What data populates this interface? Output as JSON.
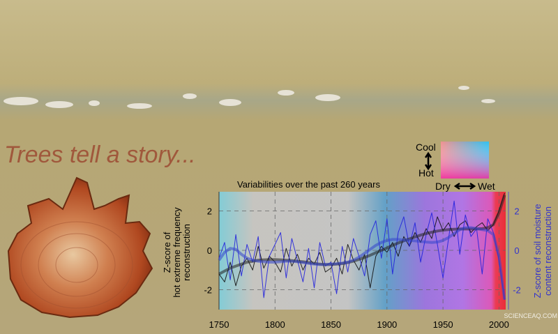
{
  "headline": "Trees tell a story...",
  "watermark": "SCIENCEAQ.COM",
  "legend_box": {
    "cool_label": "Cool",
    "hot_label": "Hot",
    "dry_label": "Dry",
    "wet_label": "Wet"
  },
  "colors": {
    "hot_series": "#111111",
    "moisture_series": "#2222dd",
    "headline": "#a0583c"
  },
  "chart_data": {
    "type": "line",
    "title": "Variabilities over the past 260 years",
    "xlabel": "",
    "ylabel_left": "Z-score of hot extreme frequency reconstruction",
    "ylabel_left_lines": [
      "Z-score of",
      "hot extreme frequency",
      "reconstruction"
    ],
    "ylabel_right_lines": [
      "Z-score of soil moisture",
      "content reconstruction"
    ],
    "xlim": [
      1750,
      2006
    ],
    "ylim": [
      -3,
      3
    ],
    "xticks": [
      1750,
      1800,
      1850,
      1900,
      1950,
      2000
    ],
    "yticks": [
      -2,
      0,
      2
    ],
    "grid": true,
    "x": [
      1750,
      1755,
      1760,
      1765,
      1770,
      1775,
      1780,
      1785,
      1790,
      1795,
      1800,
      1805,
      1810,
      1815,
      1820,
      1825,
      1830,
      1835,
      1840,
      1845,
      1850,
      1855,
      1860,
      1865,
      1870,
      1875,
      1880,
      1885,
      1890,
      1895,
      1900,
      1905,
      1910,
      1915,
      1920,
      1925,
      1930,
      1935,
      1940,
      1945,
      1950,
      1955,
      1960,
      1965,
      1970,
      1975,
      1980,
      1985,
      1990,
      1995,
      2000,
      2005
    ],
    "series": [
      {
        "values": [
          -1.2,
          -1.6,
          -0.6,
          -1.8,
          -0.8,
          -0.4,
          -1.0,
          0.2,
          -0.9,
          -0.3,
          -0.6,
          -1.1,
          0.1,
          -0.8,
          -0.2,
          -1.0,
          -0.4,
          -0.7,
          -0.1,
          -1.1,
          -0.9,
          -0.4,
          -1.2,
          0.3,
          -0.5,
          -1.0,
          -0.2,
          -1.9,
          -0.3,
          0.2,
          -0.1,
          0.4,
          -0.3,
          0.7,
          0.2,
          0.9,
          0.4,
          1.1,
          0.6,
          1.7,
          1.0,
          1.4,
          0.7,
          1.3,
          1.5,
          0.9,
          1.2,
          1.4,
          1.0,
          1.3,
          2.0,
          2.9
        ]
      },
      {
        "values": [
          -0.4,
          0.4,
          -1.5,
          0.8,
          -1.3,
          0.3,
          -0.6,
          0.7,
          -2.4,
          -0.3,
          0.3,
          0.9,
          -1.4,
          0.6,
          -0.5,
          -1.6,
          0.1,
          -1.9,
          0.4,
          -0.8,
          -0.6,
          -2.2,
          0.2,
          -1.1,
          0.6,
          -0.3,
          -1.3,
          0.8,
          1.5,
          -0.4,
          1.6,
          -1.2,
          0.9,
          1.7,
          0.2,
          1.4,
          -0.6,
          0.8,
          1.9,
          0.3,
          -1.4,
          0.6,
          2.5,
          -0.2,
          1.8,
          0.7,
          1.1,
          -1.2,
          1.6,
          0.9,
          -0.5,
          -2.5
        ]
      },
      {
        "values": [
          -1.2,
          -1.05,
          -0.9,
          -0.8,
          -0.7,
          -0.6,
          -0.55,
          -0.5,
          -0.48,
          -0.47,
          -0.47,
          -0.48,
          -0.5,
          -0.52,
          -0.55,
          -0.58,
          -0.62,
          -0.66,
          -0.7,
          -0.72,
          -0.72,
          -0.7,
          -0.67,
          -0.62,
          -0.55,
          -0.46,
          -0.36,
          -0.25,
          -0.12,
          0.0,
          0.12,
          0.25,
          0.37,
          0.48,
          0.58,
          0.68,
          0.77,
          0.85,
          0.92,
          0.98,
          1.02,
          1.05,
          1.07,
          1.08,
          1.08,
          1.08,
          1.09,
          1.1,
          1.15,
          1.3,
          1.9,
          2.8
        ]
      },
      {
        "values": [
          -0.5,
          -0.1,
          0.1,
          0.05,
          -0.2,
          -0.4,
          -0.5,
          -0.55,
          -0.58,
          -0.6,
          -0.6,
          -0.58,
          -0.55,
          -0.55,
          -0.58,
          -0.62,
          -0.66,
          -0.7,
          -0.72,
          -0.72,
          -0.7,
          -0.68,
          -0.65,
          -0.6,
          -0.5,
          -0.35,
          -0.15,
          0.05,
          0.25,
          0.4,
          0.5,
          0.55,
          0.55,
          0.52,
          0.5,
          0.48,
          0.45,
          0.42,
          0.4,
          0.42,
          0.5,
          0.65,
          0.85,
          1.05,
          1.15,
          1.15,
          1.1,
          1.05,
          1.0,
          0.8,
          -0.3,
          -2.5
        ]
      }
    ],
    "series_roles": [
      "hot extreme annual",
      "soil moisture annual",
      "hot extreme smoothed",
      "soil moisture smoothed"
    ]
  }
}
